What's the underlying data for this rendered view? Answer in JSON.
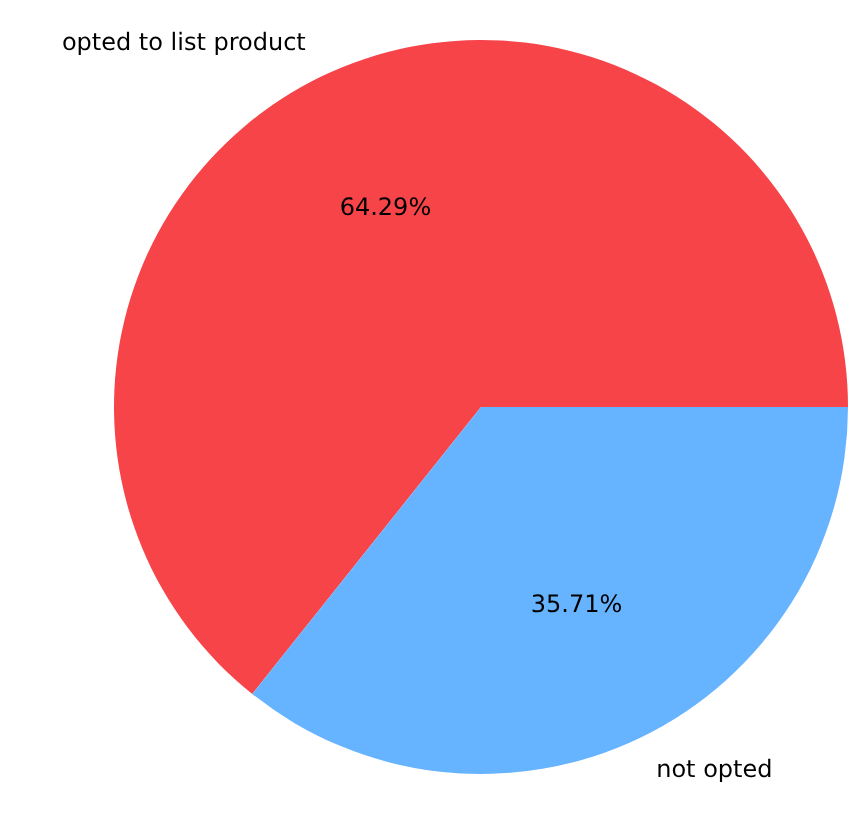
{
  "chart_data": {
    "type": "pie",
    "categories": [
      "opted to list product",
      "not opted"
    ],
    "values": [
      64.29,
      35.71
    ],
    "colors": [
      "#f64449",
      "#66b3ff"
    ],
    "value_labels": [
      "64.29%",
      "35.71%"
    ],
    "legend": false
  }
}
